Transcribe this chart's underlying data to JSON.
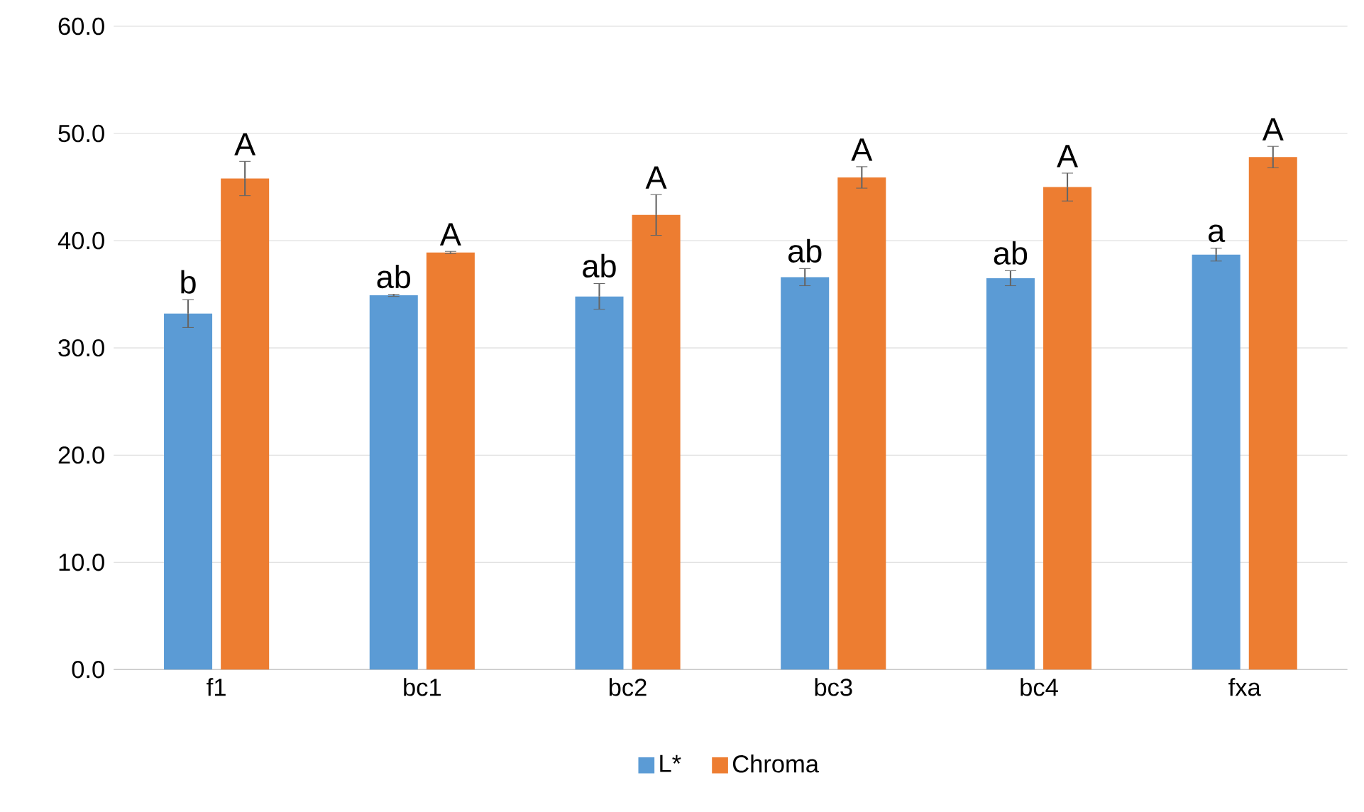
{
  "chart_data": {
    "type": "bar",
    "categories": [
      "f1",
      "bc1",
      "bc2",
      "bc3",
      "bc4",
      "fxa"
    ],
    "series": [
      {
        "name": "L*",
        "color": "#5b9bd5",
        "values": [
          33.2,
          34.9,
          34.8,
          36.6,
          36.5,
          38.7
        ],
        "errors": [
          1.3,
          0.1,
          1.2,
          0.8,
          0.7,
          0.6
        ]
      },
      {
        "name": "Chroma",
        "color": "#ed7d31",
        "values": [
          45.8,
          38.9,
          42.4,
          45.9,
          45.0,
          47.8
        ],
        "errors": [
          1.6,
          0.1,
          1.9,
          1.0,
          1.3,
          1.0
        ]
      }
    ],
    "ylim": [
      0,
      60
    ],
    "yticks": [
      {
        "value": 0,
        "label": "0.0"
      },
      {
        "value": 10,
        "label": "10.0"
      },
      {
        "value": 20,
        "label": "20.0"
      },
      {
        "value": 30,
        "label": "30.0"
      },
      {
        "value": 40,
        "label": "40.0"
      },
      {
        "value": 50,
        "label": "50.0"
      },
      {
        "value": 60,
        "label": "60.0"
      }
    ],
    "grid": "y",
    "legend": "bottom",
    "annotations": [
      {
        "text": "b",
        "x": "f1",
        "y": 33.2
      },
      {
        "text": "A",
        "x": "f1",
        "y": 45.8
      },
      {
        "text": "ab",
        "x": "bc1",
        "y": 34.9
      },
      {
        "text": "A",
        "x": "bc1",
        "y": 38.9
      },
      {
        "text": "ab",
        "x": "bc2",
        "y": 34.8
      },
      {
        "text": "A",
        "x": "bc2",
        "y": 42.4
      },
      {
        "text": "ab",
        "x": "bc3",
        "y": 36.6
      },
      {
        "text": "A",
        "x": "bc3",
        "y": 45.9
      },
      {
        "text": "ab",
        "x": "bc4",
        "y": 36.5
      },
      {
        "text": "A",
        "x": "bc4",
        "y": 45.0
      },
      {
        "text": "a",
        "x": "fxa",
        "y": 38.7
      },
      {
        "text": "A",
        "x": "fxa",
        "y": 47.8
      }
    ]
  }
}
